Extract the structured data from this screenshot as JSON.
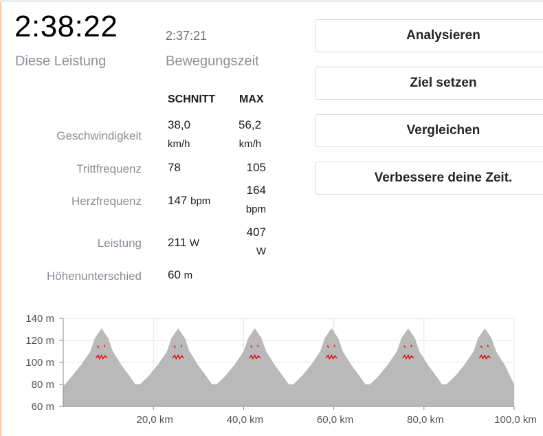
{
  "summary": {
    "elapsed_time": "2:38:22",
    "moving_time": "2:37:21",
    "elapsed_label": "Diese Leistung",
    "moving_label": "Bewegungszeit"
  },
  "stats": {
    "col_avg": "SCHNITT",
    "col_max": "MAX",
    "speed": {
      "label": "Geschwindigkeit",
      "avg": "38,0",
      "avg_unit": "km/h",
      "max": "56,2",
      "max_unit": "km/h"
    },
    "cadence": {
      "label": "Trittfrequenz",
      "avg": "78",
      "max": "105"
    },
    "heartrate": {
      "label": "Herzfrequenz",
      "avg": "147",
      "avg_unit": "bpm",
      "max": "164",
      "max_unit": "bpm"
    },
    "power": {
      "label": "Leistung",
      "avg": "211",
      "avg_unit": "W",
      "max": "407",
      "max_unit": "W"
    },
    "elevation": {
      "label": "Höhenunterschied",
      "value": "60",
      "unit": "m"
    }
  },
  "actions": {
    "analyze": "Analysieren",
    "set_goal": "Ziel setzen",
    "compare": "Vergleichen",
    "improve": "Verbessere deine Zeit."
  },
  "chart_data": {
    "type": "area",
    "x_unit": "km",
    "y_unit": "m",
    "xlim": [
      0,
      100
    ],
    "ylim": [
      60,
      140
    ],
    "x_ticks": [
      20,
      40,
      60,
      80,
      100
    ],
    "x_tick_labels": [
      "20,0 km",
      "40,0 km",
      "60,0 km",
      "80,0 km",
      "100,0 km"
    ],
    "y_ticks": [
      140,
      120,
      100,
      80,
      60
    ],
    "y_tick_labels": [
      "140 m",
      "120 m",
      "100 m",
      "80 m",
      "60 m"
    ],
    "grid": true,
    "fill_color": "#b9b9b9",
    "overlay_color": "#e8000b",
    "peaks_km": [
      8.5,
      25.5,
      42.5,
      59.5,
      76.5,
      93.5
    ],
    "x": [
      0,
      2,
      4,
      6,
      7,
      8,
      8.5,
      9,
      10,
      11,
      13,
      15,
      16,
      17,
      19,
      21,
      23,
      24,
      25,
      25.5,
      26,
      27,
      28,
      30,
      32,
      33,
      34,
      36,
      38,
      40,
      41,
      42,
      42.5,
      43,
      44,
      45,
      47,
      49,
      50,
      51,
      53,
      55,
      57,
      58,
      59,
      59.5,
      60,
      61,
      62,
      64,
      66,
      67,
      68,
      70,
      72,
      74,
      75,
      76,
      76.5,
      77,
      78,
      79,
      81,
      83,
      84,
      85,
      87,
      89,
      91,
      92,
      93,
      93.5,
      94,
      95,
      96,
      98,
      100
    ],
    "values": [
      78,
      88,
      98,
      110,
      122,
      128,
      131,
      128,
      122,
      110,
      97,
      86,
      80,
      80,
      88,
      98,
      110,
      122,
      128,
      131,
      128,
      122,
      110,
      97,
      86,
      80,
      80,
      88,
      98,
      110,
      122,
      128,
      131,
      128,
      122,
      110,
      97,
      86,
      80,
      80,
      88,
      98,
      110,
      122,
      128,
      131,
      128,
      122,
      110,
      97,
      86,
      80,
      80,
      88,
      98,
      110,
      122,
      128,
      131,
      128,
      122,
      110,
      97,
      86,
      80,
      80,
      88,
      98,
      110,
      122,
      128,
      131,
      128,
      122,
      110,
      97,
      80
    ]
  }
}
